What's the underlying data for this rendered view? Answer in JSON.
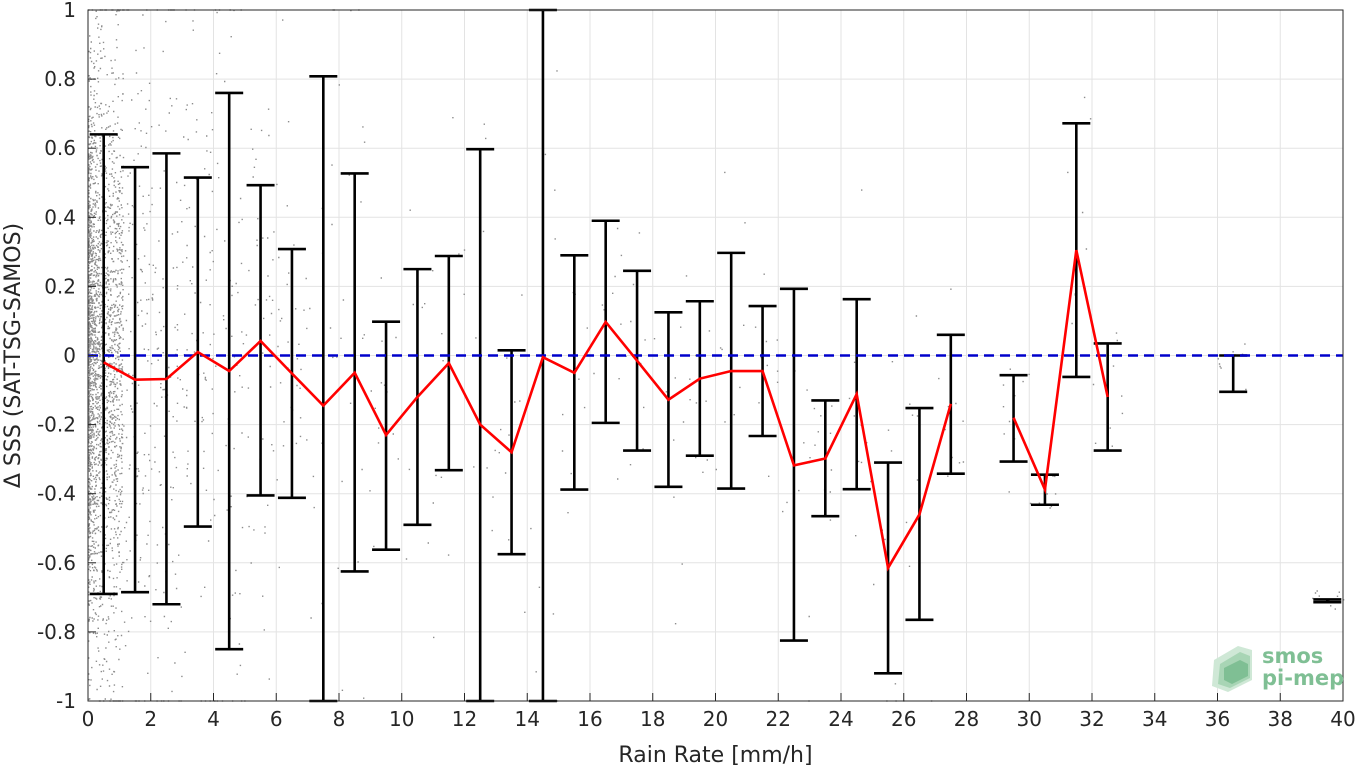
{
  "chart_data": {
    "type": "scatter",
    "xlabel": "Rain Rate [mm/h]",
    "ylabel": "Δ SSS (SAT-TSG-SAMOS)",
    "xlim": [
      0,
      40
    ],
    "ylim": [
      -1,
      1
    ],
    "xticks": [
      "0",
      "2",
      "4",
      "6",
      "8",
      "10",
      "12",
      "14",
      "16",
      "18",
      "20",
      "22",
      "24",
      "26",
      "28",
      "30",
      "32",
      "34",
      "36",
      "38",
      "40"
    ],
    "yticks": [
      "1",
      "0.8",
      "0.6",
      "0.4",
      "0.2",
      "0",
      "-0.2",
      "-0.4",
      "-0.6",
      "-0.8",
      "-1"
    ],
    "grid": true,
    "reference_line": {
      "y": 0,
      "color": "#0000cc",
      "style": "dashed"
    },
    "series": [
      {
        "kind": "mean_with_std_errorbars",
        "color": "#ff0000",
        "errorbar_color": "#000000",
        "points": [
          {
            "x": 0.5,
            "y": -0.02,
            "lo": -0.69,
            "hi": 0.64
          },
          {
            "x": 1.5,
            "y": -0.07,
            "lo": -0.685,
            "hi": 0.545
          },
          {
            "x": 2.5,
            "y": -0.068,
            "lo": -0.72,
            "hi": 0.585
          },
          {
            "x": 3.5,
            "y": 0.01,
            "lo": -0.495,
            "hi": 0.515
          },
          {
            "x": 4.5,
            "y": -0.045,
            "lo": -0.85,
            "hi": 0.76
          },
          {
            "x": 5.5,
            "y": 0.042,
            "lo": -0.405,
            "hi": 0.493
          },
          {
            "x": 6.5,
            "y": -0.052,
            "lo": -0.412,
            "hi": 0.308
          },
          {
            "x": 7.5,
            "y": -0.145,
            "lo": -1.0,
            "hi": 0.808
          },
          {
            "x": 8.5,
            "y": -0.05,
            "lo": -0.625,
            "hi": 0.527
          },
          {
            "x": 9.5,
            "y": -0.23,
            "lo": -0.562,
            "hi": 0.098
          },
          {
            "x": 10.5,
            "y": -0.12,
            "lo": -0.49,
            "hi": 0.25
          },
          {
            "x": 11.5,
            "y": -0.022,
            "lo": -0.332,
            "hi": 0.288
          },
          {
            "x": 12.5,
            "y": -0.2,
            "lo": -1.0,
            "hi": 0.597
          },
          {
            "x": 13.5,
            "y": -0.28,
            "lo": -0.575,
            "hi": 0.015
          },
          {
            "x": 14.5,
            "y": -0.005,
            "lo": -1.0,
            "hi": 1.0
          },
          {
            "x": 15.5,
            "y": -0.05,
            "lo": -0.388,
            "hi": 0.29
          },
          {
            "x": 16.5,
            "y": 0.097,
            "lo": -0.195,
            "hi": 0.39
          },
          {
            "x": 17.5,
            "y": -0.015,
            "lo": -0.275,
            "hi": 0.245
          },
          {
            "x": 18.5,
            "y": -0.128,
            "lo": -0.38,
            "hi": 0.125
          },
          {
            "x": 19.5,
            "y": -0.067,
            "lo": -0.29,
            "hi": 0.157
          },
          {
            "x": 20.5,
            "y": -0.045,
            "lo": -0.385,
            "hi": 0.297
          },
          {
            "x": 21.5,
            "y": -0.045,
            "lo": -0.233,
            "hi": 0.143
          },
          {
            "x": 22.5,
            "y": -0.318,
            "lo": -0.825,
            "hi": 0.193
          },
          {
            "x": 23.5,
            "y": -0.298,
            "lo": -0.465,
            "hi": -0.13
          },
          {
            "x": 24.5,
            "y": -0.112,
            "lo": -0.387,
            "hi": 0.163
          },
          {
            "x": 25.5,
            "y": -0.615,
            "lo": -0.92,
            "hi": -0.31
          },
          {
            "x": 26.5,
            "y": -0.46,
            "lo": -0.765,
            "hi": -0.152
          },
          {
            "x": 27.5,
            "y": -0.14,
            "lo": -0.342,
            "hi": 0.06
          },
          {
            "x": 29.5,
            "y": -0.18,
            "lo": -0.307,
            "hi": -0.057
          },
          {
            "x": 30.5,
            "y": -0.388,
            "lo": -0.432,
            "hi": -0.345
          },
          {
            "x": 31.5,
            "y": 0.305,
            "lo": -0.062,
            "hi": 0.672
          },
          {
            "x": 32.5,
            "y": -0.12,
            "lo": -0.275,
            "hi": 0.035
          },
          {
            "x": 36.5,
            "y": -0.052,
            "lo": -0.105,
            "hi": 0.0
          },
          {
            "x": 39.5,
            "y": -0.71,
            "lo": -0.714,
            "hi": -0.706
          }
        ]
      }
    ]
  },
  "logo": {
    "line1": "smos",
    "line2": "pi-mep"
  }
}
